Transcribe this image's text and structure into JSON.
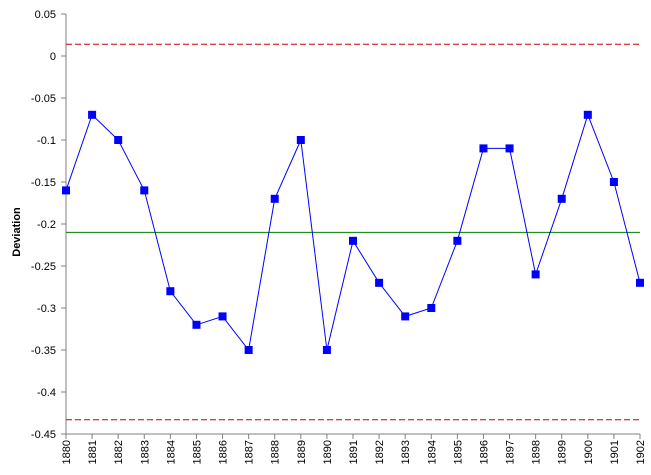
{
  "chart_data": {
    "type": "line",
    "title": "",
    "xlabel": "",
    "ylabel": "Deviation",
    "ylim": [
      -0.45,
      0.05
    ],
    "y_ticks": [
      0.05,
      0,
      -0.05,
      -0.1,
      -0.15,
      -0.2,
      -0.25,
      -0.3,
      -0.35,
      -0.4,
      -0.45
    ],
    "y_tick_labels": [
      "0.05",
      "0",
      "-0.05",
      "-0.1",
      "-0.15",
      "-0.2",
      "-0.25",
      "-0.3",
      "-0.35",
      "-0.4",
      "-0.45"
    ],
    "categories": [
      "1880",
      "1881",
      "1882",
      "1883",
      "1884",
      "1885",
      "1886",
      "1887",
      "1888",
      "1889",
      "1890",
      "1891",
      "1892",
      "1893",
      "1894",
      "1895",
      "1896",
      "1897",
      "1898",
      "1899",
      "1900",
      "1901",
      "1902"
    ],
    "series": [
      {
        "values": [
          -0.16,
          -0.07,
          -0.1,
          -0.16,
          -0.28,
          -0.32,
          -0.31,
          -0.35,
          -0.17,
          -0.1,
          -0.35,
          -0.22,
          -0.27,
          -0.31,
          -0.3,
          -0.22,
          -0.11,
          -0.11,
          -0.26,
          -0.17,
          -0.07,
          -0.15,
          -0.27
        ],
        "color": "#0000ff",
        "marker": "square"
      }
    ],
    "reference_lines": [
      {
        "kind": "center-line",
        "value": -0.21,
        "color": "#008000",
        "style": "solid"
      },
      {
        "kind": "upper-limit",
        "value": 0.014,
        "color": "#cc0000",
        "style": "dashed"
      },
      {
        "kind": "lower-limit",
        "value": -0.433,
        "color": "#cc0000",
        "style": "dashed"
      }
    ],
    "grid": false,
    "legend": "none"
  }
}
